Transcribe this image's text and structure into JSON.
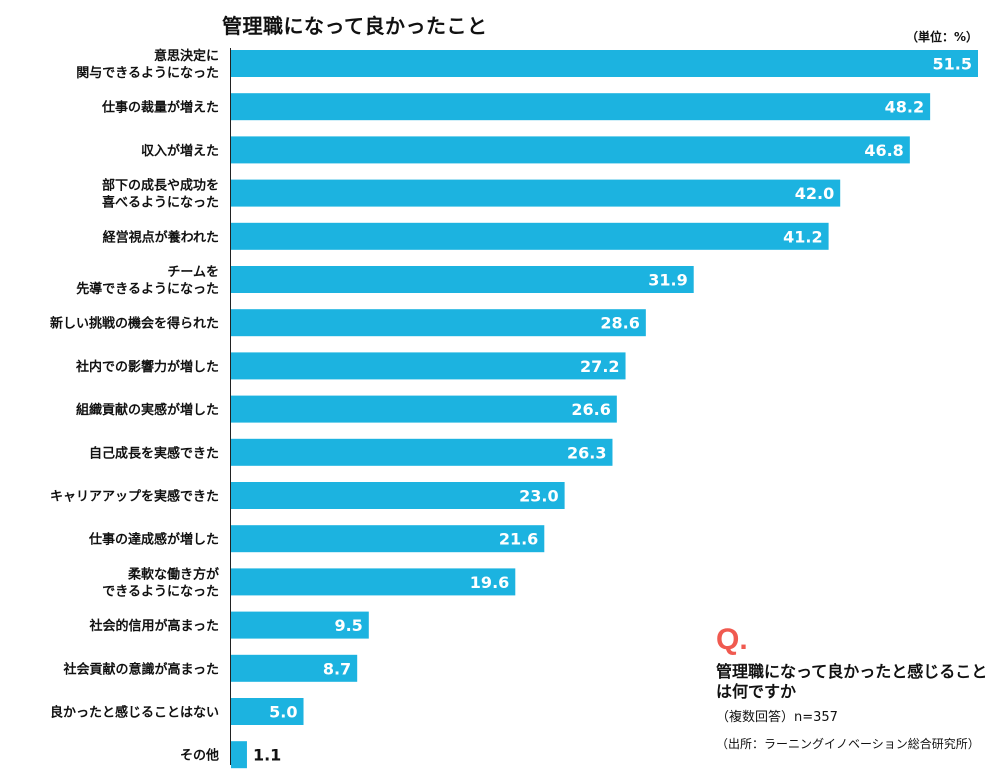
{
  "chart_data": {
    "type": "bar",
    "orientation": "horizontal",
    "title": "管理職になって良かったこと",
    "unit_label": "（単位：%）",
    "categories": [
      [
        "意思決定に",
        "関与できるようになった"
      ],
      [
        "仕事の裁量が増えた"
      ],
      [
        "収入が増えた"
      ],
      [
        "部下の成長や成功を",
        "喜べるようになった"
      ],
      [
        "経営視点が養われた"
      ],
      [
        "チームを",
        "先導できるようになった"
      ],
      [
        "新しい挑戦の機会を得られた"
      ],
      [
        "社内での影響力が増した"
      ],
      [
        "組織貢献の実感が増した"
      ],
      [
        "自己成長を実感できた"
      ],
      [
        "キャリアアップを実感できた"
      ],
      [
        "仕事の達成感が増した"
      ],
      [
        "柔軟な働き方が",
        "できるようになった"
      ],
      [
        "社会的信用が高まった"
      ],
      [
        "社会貢献の意識が高まった"
      ],
      [
        "良かったと感じることはない"
      ],
      [
        "その他"
      ]
    ],
    "values": [
      51.5,
      48.2,
      46.8,
      42.0,
      41.2,
      31.9,
      28.6,
      27.2,
      26.6,
      26.3,
      23.0,
      21.6,
      19.6,
      9.5,
      8.7,
      5.0,
      1.1
    ],
    "value_labels": [
      "51.5",
      "48.2",
      "46.8",
      "42.0",
      "41.2",
      "31.9",
      "28.6",
      "27.2",
      "26.6",
      "26.3",
      "23.0",
      "21.6",
      "19.6",
      "9.5",
      "8.7",
      "5.0",
      "1.1"
    ],
    "xlim": [
      0,
      51.5
    ],
    "bar_color": "#1cb3e0",
    "grid": false,
    "legend": "none"
  },
  "question": {
    "mark": "Q.",
    "text": "管理職になって良かったと感じることは何ですか",
    "sample": "（複数回答）n=357",
    "source": "（出所：ラーニングイノベーション総合研究所）",
    "mark_color": "#f05a50"
  }
}
